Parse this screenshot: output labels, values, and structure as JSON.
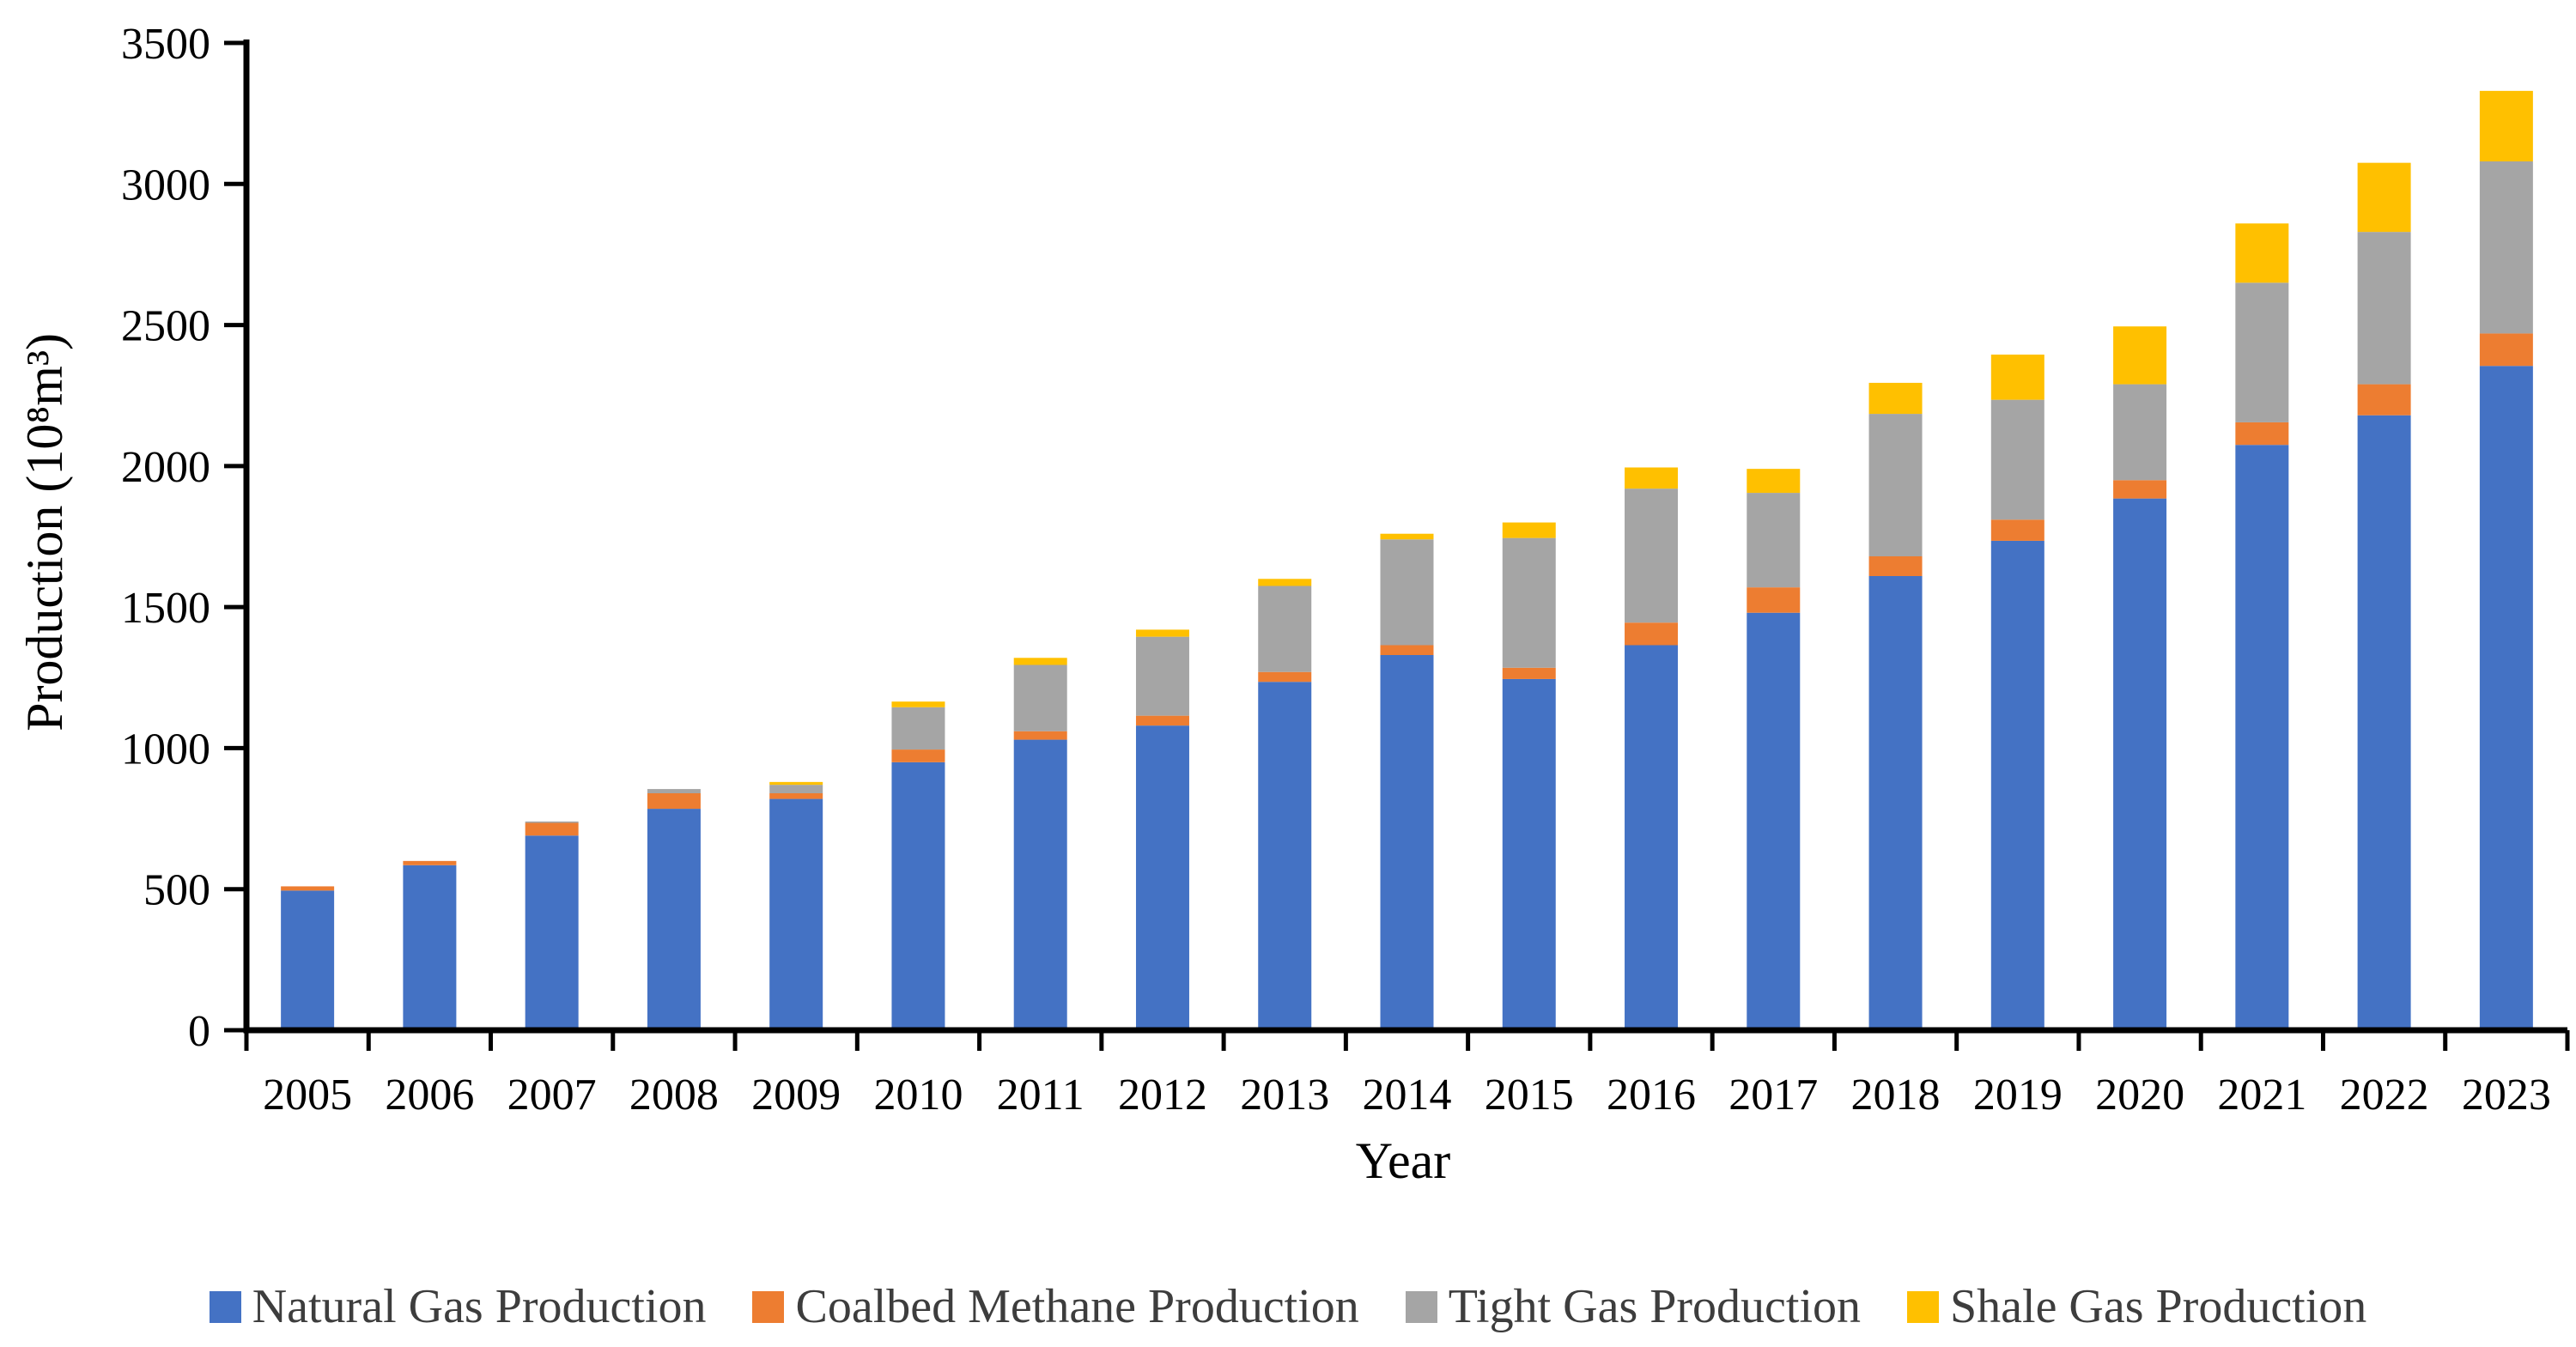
{
  "chart_data": {
    "type": "bar",
    "stacked": true,
    "title": "",
    "xlabel": "Year",
    "ylabel": "Production (10⁸m³)",
    "ylim": [
      0,
      3500
    ],
    "ytick_step": 500,
    "yticks": [
      0,
      500,
      1000,
      1500,
      2000,
      2500,
      3000,
      3500
    ],
    "grid": false,
    "legend_position": "bottom",
    "categories": [
      "2005",
      "2006",
      "2007",
      "2008",
      "2009",
      "2010",
      "2011",
      "2012",
      "2013",
      "2014",
      "2015",
      "2016",
      "2017",
      "2018",
      "2019",
      "2020",
      "2021",
      "2022",
      "2023"
    ],
    "series": [
      {
        "name": "Natural Gas Production",
        "color": "#4472C4",
        "values": [
          495,
          585,
          690,
          785,
          820,
          950,
          1030,
          1080,
          1235,
          1330,
          1245,
          1365,
          1480,
          1610,
          1735,
          1885,
          2075,
          2180,
          2355
        ]
      },
      {
        "name": "Coalbed Methane Production",
        "color": "#ED7D31",
        "values": [
          15,
          15,
          45,
          55,
          20,
          45,
          30,
          35,
          35,
          35,
          40,
          80,
          90,
          70,
          75,
          65,
          80,
          110,
          115
        ]
      },
      {
        "name": "Tight Gas Production",
        "color": "#A5A5A5",
        "values": [
          0,
          0,
          5,
          15,
          30,
          150,
          235,
          280,
          305,
          375,
          460,
          475,
          335,
          505,
          425,
          340,
          495,
          540,
          610
        ]
      },
      {
        "name": "Shale Gas Production",
        "color": "#FFC000",
        "values": [
          0,
          0,
          0,
          0,
          10,
          20,
          25,
          25,
          25,
          20,
          55,
          75,
          85,
          110,
          160,
          205,
          210,
          245,
          250
        ]
      }
    ]
  }
}
